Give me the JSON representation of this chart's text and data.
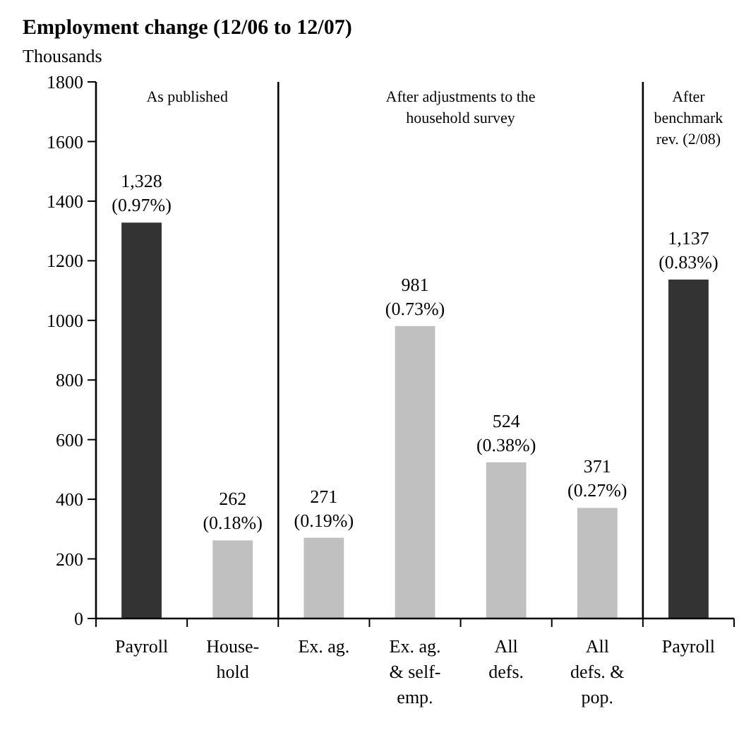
{
  "chart_data": {
    "type": "bar",
    "title": "Employment change (12/06 to 12/07)",
    "ylabel": "Thousands",
    "categories": [
      "Payroll",
      "House-\nhold",
      "Ex. ag.",
      "Ex. ag.\n& self-\nemp.",
      "All\ndefs.",
      "All\ndefs. &\npop.",
      "Payroll"
    ],
    "values": [
      1328,
      262,
      271,
      981,
      524,
      371,
      1137
    ],
    "colors": [
      "#333333",
      "#c0c0c0",
      "#c0c0c0",
      "#c0c0c0",
      "#c0c0c0",
      "#c0c0c0",
      "#333333"
    ],
    "value_labels": [
      "1,328\n(0.97%)",
      "262\n(0.18%)",
      "271\n(0.19%)",
      "981\n(0.73%)",
      "524\n(0.38%)",
      "371\n(0.27%)",
      "1,137\n(0.83%)"
    ],
    "ylim": [
      0,
      1800
    ],
    "yticks": [
      0,
      200,
      400,
      600,
      800,
      1000,
      1200,
      1400,
      1600,
      1800
    ],
    "grid": false,
    "annotations": [
      "As published",
      "After adjustments to the\nhousehold survey",
      "After\nbenchmark\nrev. (2/08)"
    ]
  }
}
